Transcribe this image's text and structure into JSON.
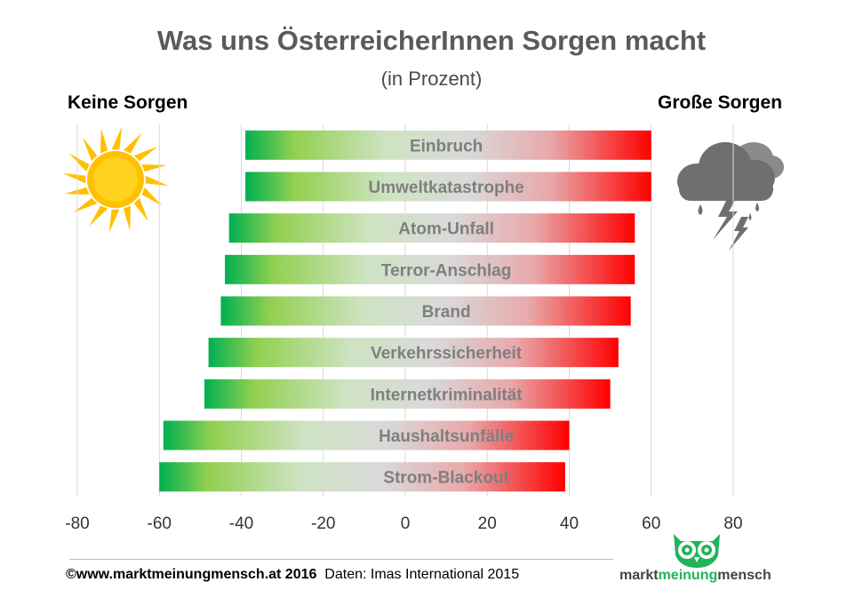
{
  "header": {
    "title": "Was uns ÖsterreicherInnen Sorgen macht",
    "subtitle": "(in Prozent)",
    "left_label": "Keine Sorgen",
    "right_label": "Große Sorgen"
  },
  "icons": {
    "left": "sun-icon",
    "right": "storm-cloud-icon",
    "logo": "owl-logo-icon"
  },
  "footer": {
    "credit_bold": "©www.marktmeinungmensch.at 2016",
    "credit_source": "Daten: Imas International 2015",
    "logo_prefix": "markt",
    "logo_middle": "meinung",
    "logo_suffix": "mensch"
  },
  "colors": {
    "positive": "#ff0000",
    "negative": "#00b050",
    "neutral": "#d9d9d9",
    "logo_green": "#22b35a"
  },
  "chart_data": {
    "type": "bar",
    "orientation": "horizontal",
    "categories": [
      "Einbruch",
      "Umweltkatastrophe",
      "Atom-Unfall",
      "Terror-Anschlag",
      "Brand",
      "Verkehrssicherheit",
      "Internetkriminalität",
      "Haushaltsunfälle",
      "Strom-Blackout"
    ],
    "series": [
      {
        "values_left": [
          -39,
          -39,
          -43,
          -44,
          -45,
          -48,
          -49,
          -59,
          -60
        ],
        "values_right": [
          60,
          60,
          56,
          56,
          55,
          52,
          50,
          40,
          39
        ]
      }
    ],
    "xlim": [
      -80,
      80
    ],
    "xticks": [
      "-80",
      "-60",
      "-40",
      "-20",
      "0",
      "20",
      "40",
      "60",
      "80"
    ],
    "grid": true,
    "legend": "none"
  }
}
